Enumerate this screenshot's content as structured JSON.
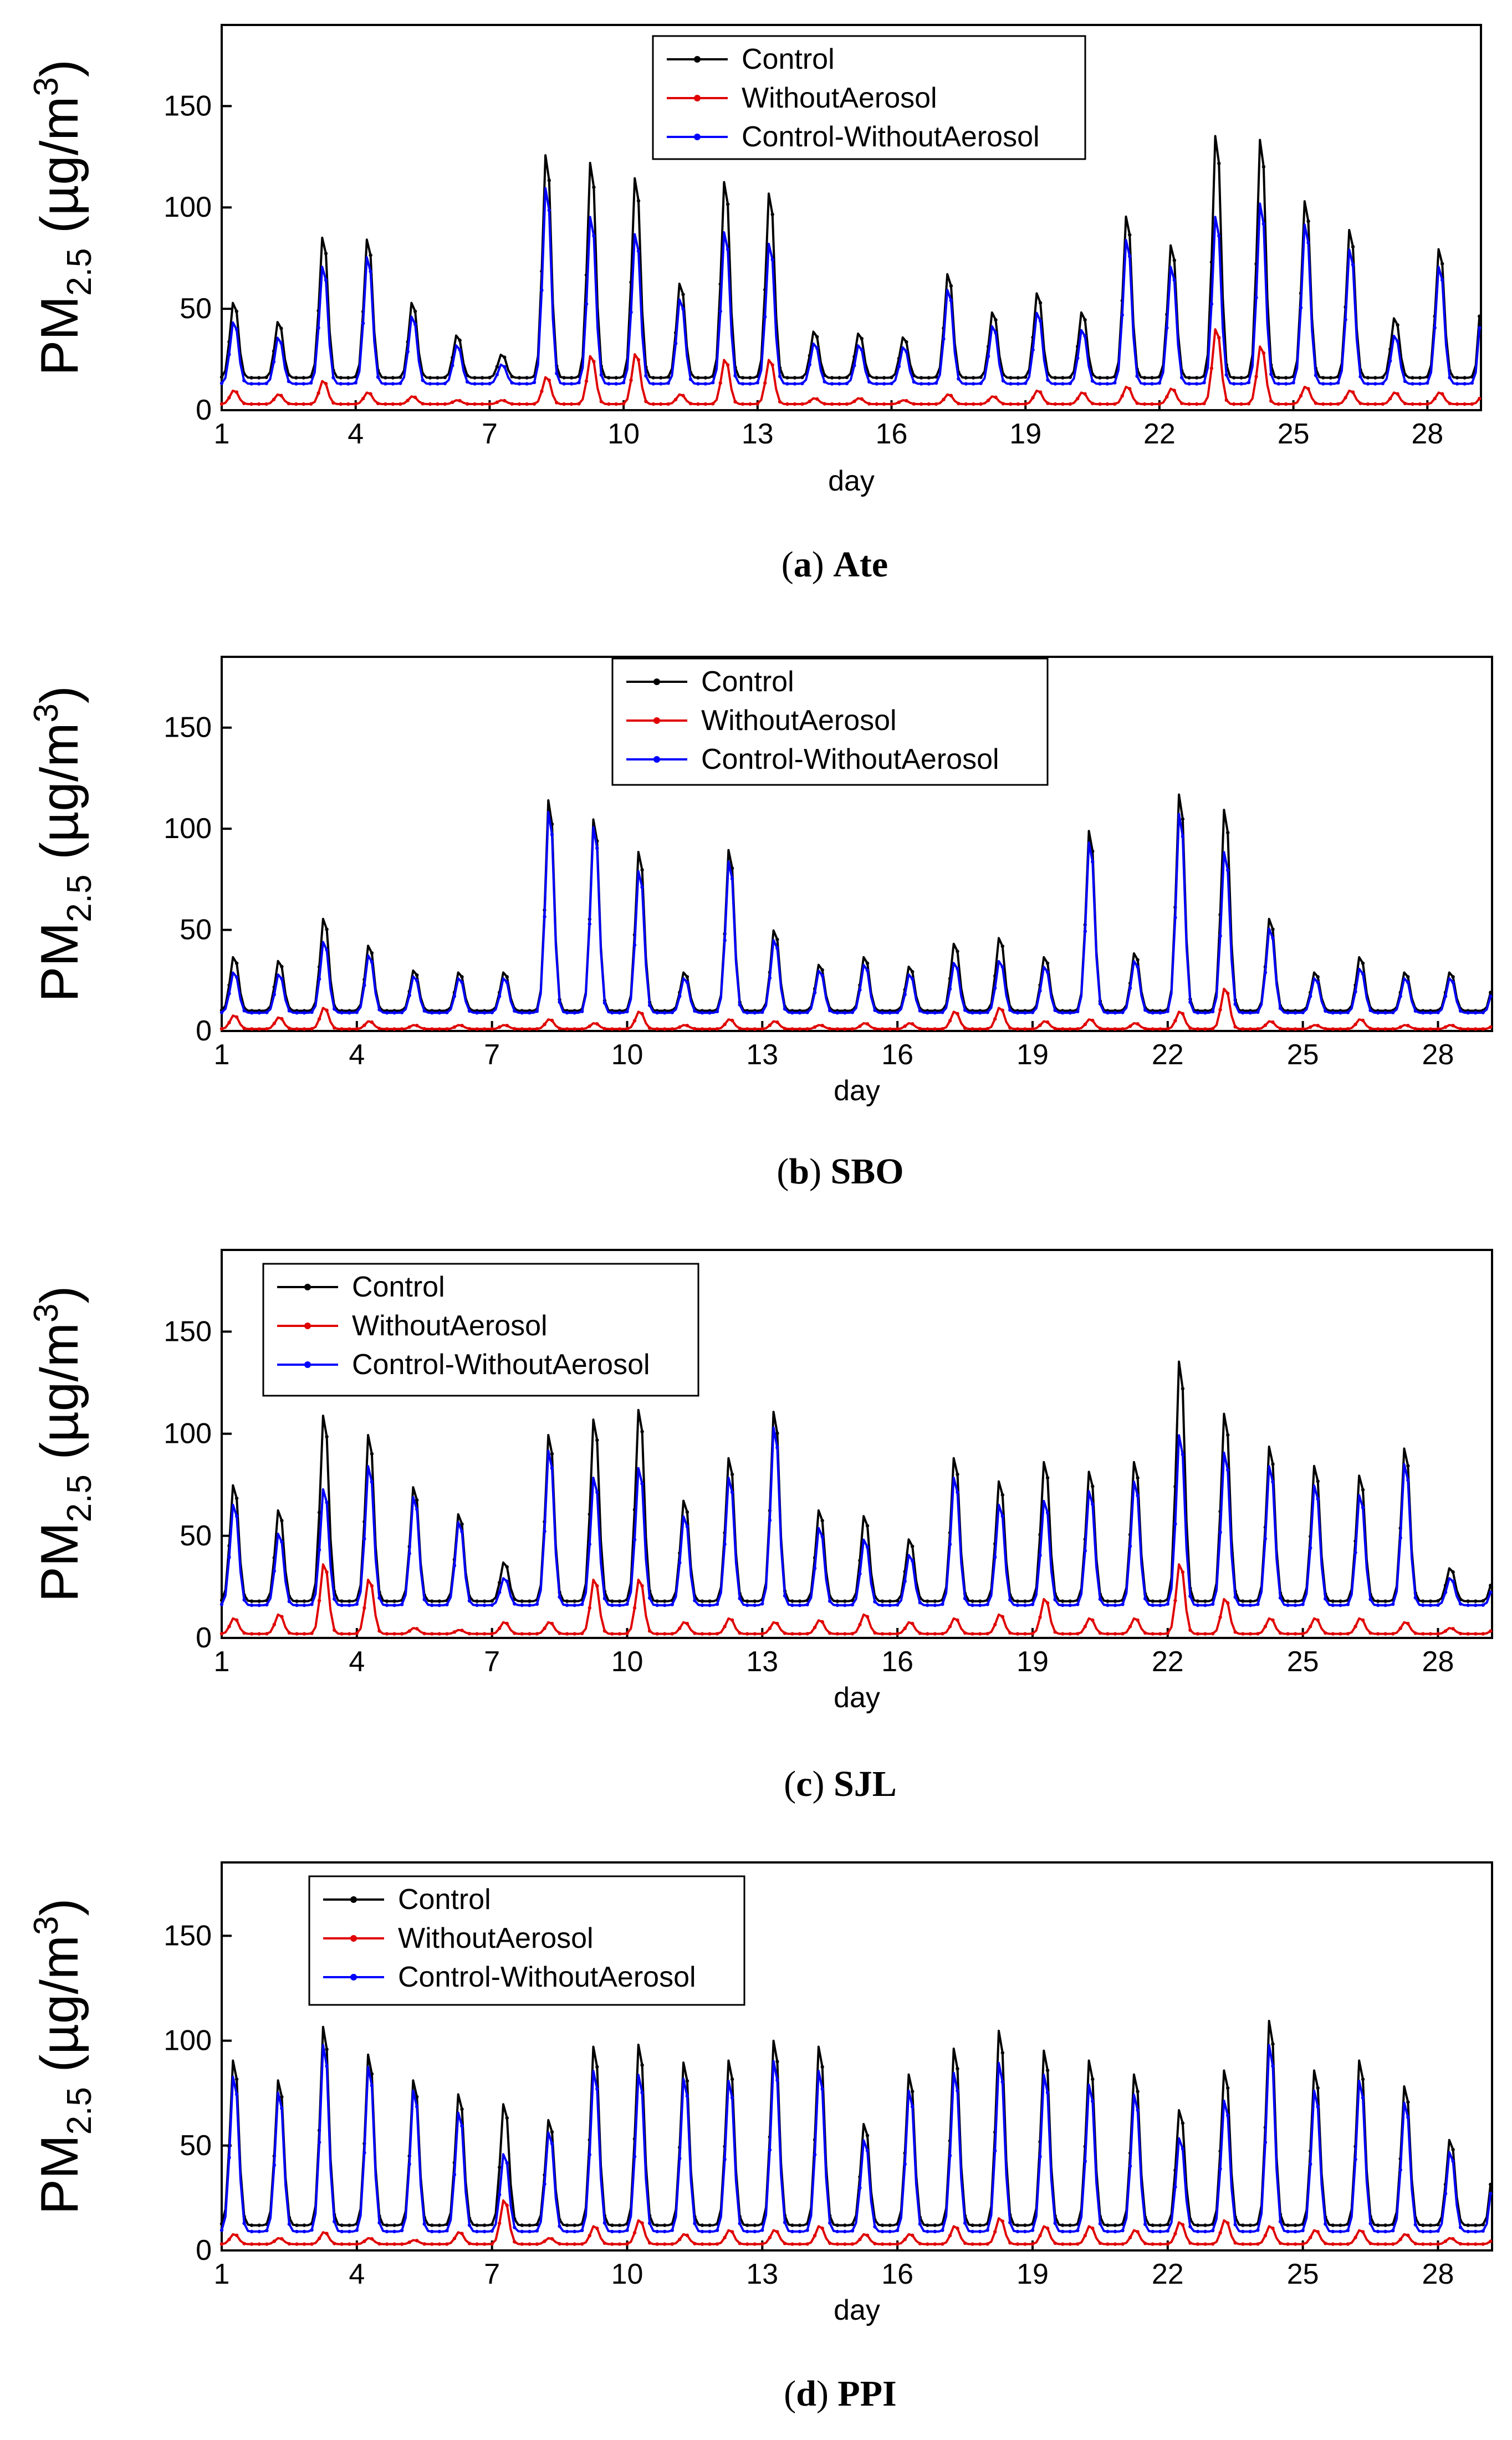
{
  "figure": {
    "panels": [
      {
        "caption_letter": "a",
        "caption_site": "Ate",
        "legend": [
          "Control",
          "WithoutAerosol",
          "Control-WithoutAerosol"
        ],
        "peaks": {
          "control": [
            55,
            45,
            89,
            88,
            55,
            38,
            28,
            132,
            128,
            120,
            65,
            118,
            112,
            40,
            39,
            37,
            70,
            50,
            60,
            50,
            100,
            85,
            142,
            140,
            108,
            93,
            47,
            83
          ],
          "without": [
            10,
            8,
            15,
            9,
            7,
            5,
            5,
            17,
            28,
            29,
            8,
            26,
            26,
            6,
            6,
            5,
            8,
            7,
            10,
            9,
            12,
            11,
            42,
            33,
            12,
            10,
            9,
            9
          ],
          "diff": [
            45,
            37,
            74,
            79,
            48,
            33,
            23,
            115,
            100,
            91,
            57,
            92,
            86,
            34,
            33,
            32,
            62,
            43,
            50,
            41,
            88,
            74,
            100,
            107,
            96,
            83,
            38,
            74
          ],
          "base_ctrl": 16,
          "base_wo": 3
        }
      },
      {
        "caption_letter": "b",
        "caption_site": "SBO",
        "legend": [
          "Control",
          "WithoutAerosol",
          "Control-WithoutAerosol"
        ],
        "peaks": {
          "control": [
            38,
            36,
            58,
            44,
            31,
            30,
            30,
            120,
            110,
            93,
            30,
            94,
            52,
            34,
            38,
            33,
            45,
            48,
            38,
            104,
            40,
            123,
            115,
            58,
            30,
            38,
            30,
            30
          ],
          "without": [
            8,
            7,
            12,
            5,
            3,
            3,
            3,
            6,
            4,
            10,
            3,
            6,
            5,
            3,
            4,
            4,
            10,
            12,
            5,
            6,
            4,
            10,
            22,
            5,
            3,
            6,
            3,
            3
          ],
          "diff": [
            30,
            29,
            46,
            39,
            28,
            27,
            27,
            114,
            106,
            83,
            27,
            88,
            47,
            31,
            34,
            29,
            35,
            36,
            33,
            98,
            36,
            113,
            93,
            53,
            27,
            32,
            27,
            27
          ],
          "base_ctrl": 10,
          "base_wo": 1
        }
      },
      {
        "caption_letter": "c",
        "caption_site": "SJL",
        "legend": [
          "Control",
          "WithoutAerosol",
          "Control-WithoutAerosol"
        ],
        "peaks": {
          "control": [
            78,
            65,
            114,
            104,
            77,
            63,
            38,
            104,
            112,
            117,
            70,
            92,
            116,
            65,
            62,
            50,
            92,
            80,
            90,
            85,
            90,
            142,
            115,
            98,
            88,
            83,
            97,
            35
          ],
          "without": [
            10,
            12,
            38,
            30,
            5,
            4,
            8,
            8,
            30,
            30,
            8,
            10,
            8,
            9,
            12,
            8,
            10,
            12,
            20,
            10,
            10,
            38,
            20,
            10,
            10,
            10,
            8,
            5
          ],
          "diff": [
            68,
            53,
            76,
            88,
            72,
            59,
            30,
            96,
            82,
            87,
            62,
            82,
            108,
            56,
            50,
            42,
            82,
            68,
            70,
            75,
            80,
            104,
            95,
            88,
            78,
            73,
            89,
            30
          ],
          "base_ctrl": 18,
          "base_wo": 2
        }
      },
      {
        "caption_letter": "d",
        "caption_site": "PPI",
        "legend": [
          " Control",
          "WithoutAerosol",
          "Control-WithoutAerosol"
        ],
        "peaks": {
          "control": [
            95,
            85,
            112,
            98,
            85,
            78,
            73,
            65,
            102,
            103,
            94,
            95,
            105,
            102,
            63,
            88,
            101,
            110,
            100,
            95,
            88,
            70,
            90,
            115,
            90,
            95,
            82,
            55
          ],
          "without": [
            8,
            6,
            9,
            6,
            5,
            9,
            25,
            6,
            12,
            15,
            8,
            10,
            10,
            12,
            8,
            8,
            12,
            16,
            12,
            12,
            10,
            14,
            15,
            12,
            10,
            10,
            8,
            6
          ],
          "diff": [
            87,
            79,
            103,
            92,
            80,
            69,
            48,
            59,
            90,
            88,
            86,
            85,
            95,
            90,
            55,
            80,
            89,
            94,
            88,
            83,
            78,
            56,
            75,
            103,
            80,
            85,
            74,
            49
          ],
          "base_ctrl": 12,
          "base_wo": 3
        }
      }
    ]
  },
  "chart_data": [
    {
      "type": "line",
      "title": "(a) Ate",
      "xlabel": "day",
      "ylabel": "PM2.5 (µg/m3)",
      "xlim": [
        1,
        29.2
      ],
      "ylim": [
        0,
        190
      ],
      "xticks": [
        "1",
        "4",
        "7",
        "10",
        "13",
        "16",
        "19",
        "22",
        "25",
        "28"
      ],
      "yticks": [
        "0",
        "50",
        "100",
        "150"
      ],
      "legend_position": "top-center",
      "series": [
        {
          "name": "Control",
          "color": "#000000",
          "marker": "square"
        },
        {
          "name": "WithoutAerosol",
          "color": "#e00000",
          "marker": "circle"
        },
        {
          "name": "Control-WithoutAerosol",
          "color": "#0000ff",
          "marker": "triangle"
        }
      ]
    },
    {
      "type": "line",
      "title": "(b) SBO",
      "xlabel": "day",
      "ylabel": "PM2.5 (µg/m3)",
      "xlim": [
        1,
        29.2
      ],
      "ylim": [
        0,
        185
      ],
      "xticks": [
        "1",
        "4",
        "7",
        "10",
        "13",
        "16",
        "19",
        "22",
        "25",
        "28"
      ],
      "yticks": [
        "0",
        "50",
        "100",
        "150"
      ],
      "legend_position": "top-center",
      "series": [
        {
          "name": "Control",
          "color": "#000000",
          "marker": "square"
        },
        {
          "name": "WithoutAerosol",
          "color": "#e00000",
          "marker": "circle"
        },
        {
          "name": "Control-WithoutAerosol",
          "color": "#0000ff",
          "marker": "triangle"
        }
      ]
    },
    {
      "type": "line",
      "title": "(c) SJL",
      "xlabel": "day",
      "ylabel": "PM2.5 (µg/m3)",
      "xlim": [
        1,
        29.2
      ],
      "ylim": [
        0,
        190
      ],
      "xticks": [
        "1",
        "4",
        "7",
        "10",
        "13",
        "16",
        "19",
        "22",
        "25",
        "28"
      ],
      "yticks": [
        "0",
        "50",
        "100",
        "150"
      ],
      "legend_position": "top-left",
      "series": [
        {
          "name": "Control",
          "color": "#000000",
          "marker": "square"
        },
        {
          "name": "WithoutAerosol",
          "color": "#e00000",
          "marker": "circle"
        },
        {
          "name": "Control-WithoutAerosol",
          "color": "#0000ff",
          "marker": "triangle"
        }
      ]
    },
    {
      "type": "line",
      "title": "(d) PPI",
      "xlabel": "day",
      "ylabel": "PM2.5 (µg/m3)",
      "xlim": [
        1,
        29.2
      ],
      "ylim": [
        0,
        185
      ],
      "xticks": [
        "1",
        "4",
        "7",
        "10",
        "13",
        "16",
        "19",
        "22",
        "25",
        "28"
      ],
      "yticks": [
        "0",
        "50",
        "100",
        "150"
      ],
      "legend_position": "top-left",
      "series": [
        {
          "name": "Control",
          "color": "#000000",
          "marker": "square"
        },
        {
          "name": "WithoutAerosol",
          "color": "#e00000",
          "marker": "circle"
        },
        {
          "name": "Control-WithoutAerosol",
          "color": "#0000ff",
          "marker": "triangle"
        }
      ]
    }
  ]
}
